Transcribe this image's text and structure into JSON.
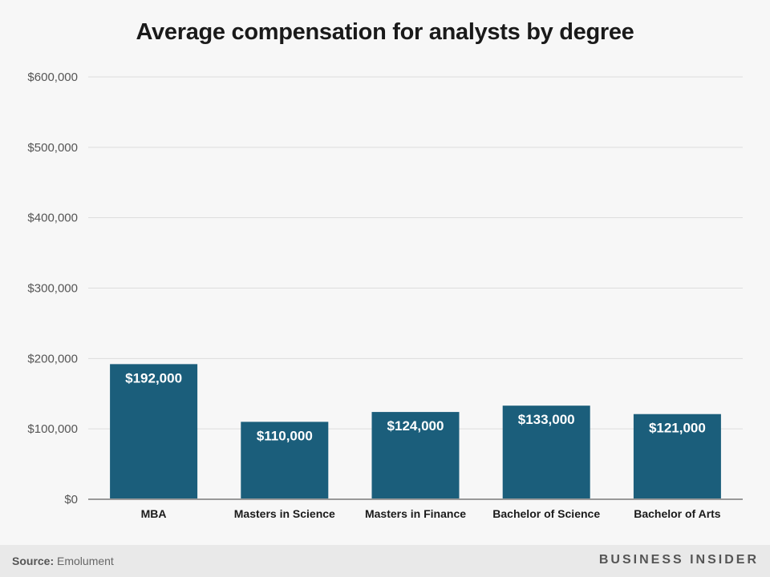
{
  "chart_data": {
    "type": "bar",
    "title": "Average compensation for analysts by degree",
    "categories": [
      "MBA",
      "Masters in Science",
      "Masters in Finance",
      "Bachelor of Science",
      "Bachelor of Arts"
    ],
    "values": [
      192000,
      110000,
      124000,
      133000,
      121000
    ],
    "value_labels": [
      "$192,000",
      "$110,000",
      "$124,000",
      "$133,000",
      "$121,000"
    ],
    "xlabel": "",
    "ylabel": "",
    "ylim": [
      0,
      600000
    ],
    "y_ticks": [
      0,
      100000,
      200000,
      300000,
      400000,
      500000,
      600000
    ],
    "y_tick_labels": [
      "$0",
      "$100,000",
      "$200,000",
      "$300,000",
      "$400,000",
      "$500,000",
      "$600,000"
    ],
    "grid": true,
    "bar_color": "#1b5e7b"
  },
  "footer": {
    "source_key": "Source:",
    "source_value": "Emolument",
    "brand": "BUSINESS INSIDER"
  }
}
